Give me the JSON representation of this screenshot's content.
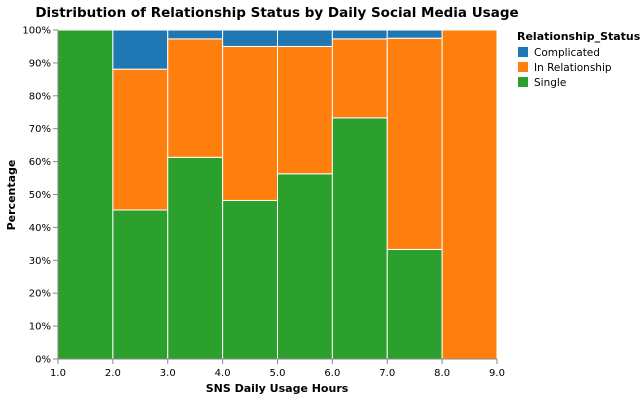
{
  "chart_data": {
    "type": "bar",
    "stacked": "normalized",
    "title": "Distribution of Relationship Status by Daily Social Media Usage",
    "xlabel": "SNS Daily Usage Hours",
    "ylabel": "Percentage",
    "x_ticks": [
      "1.0",
      "2.0",
      "3.0",
      "4.0",
      "5.0",
      "6.0",
      "7.0",
      "8.0",
      "9.0"
    ],
    "y_ticks": [
      "0%",
      "10%",
      "20%",
      "30%",
      "40%",
      "50%",
      "60%",
      "70%",
      "80%",
      "90%",
      "100%"
    ],
    "xlim": [
      1,
      9
    ],
    "ylim": [
      0,
      1
    ],
    "bins": [
      [
        1,
        2
      ],
      [
        2,
        3
      ],
      [
        3,
        4
      ],
      [
        4,
        5
      ],
      [
        5,
        6
      ],
      [
        6,
        7
      ],
      [
        7,
        8
      ],
      [
        8,
        9
      ]
    ],
    "series": [
      {
        "name": "Single",
        "color": "#2ca02c",
        "values": [
          1.0,
          0.453,
          0.613,
          0.482,
          0.563,
          0.733,
          0.333,
          0.0
        ]
      },
      {
        "name": "In Relationship",
        "color": "#ff7f0e",
        "values": [
          0.0,
          0.428,
          0.36,
          0.468,
          0.387,
          0.24,
          0.642,
          1.0
        ]
      },
      {
        "name": "Complicated",
        "color": "#1f77b4",
        "values": [
          0.0,
          0.119,
          0.027,
          0.05,
          0.05,
          0.027,
          0.025,
          0.0
        ]
      }
    ],
    "legend": {
      "title": "Relationship_Status",
      "position": "top-right",
      "items": [
        {
          "label": "Complicated",
          "color": "#1f77b4"
        },
        {
          "label": "In Relationship",
          "color": "#ff7f0e"
        },
        {
          "label": "Single",
          "color": "#2ca02c"
        }
      ]
    }
  }
}
